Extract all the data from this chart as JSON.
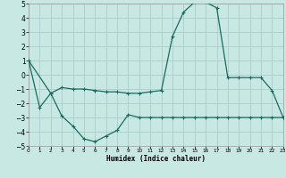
{
  "xlabel": "Humidex (Indice chaleur)",
  "bg_color": "#c8e8e4",
  "grid_color": "#b0d0cc",
  "line_color": "#1a6b5e",
  "xlim": [
    0,
    23
  ],
  "ylim": [
    -5,
    5
  ],
  "xticks": [
    0,
    1,
    2,
    3,
    4,
    5,
    6,
    7,
    8,
    9,
    10,
    11,
    12,
    13,
    14,
    15,
    16,
    17,
    18,
    19,
    20,
    21,
    22,
    23
  ],
  "yticks": [
    -5,
    -4,
    -3,
    -2,
    -1,
    0,
    1,
    2,
    3,
    4,
    5
  ],
  "line1_x": [
    0,
    1,
    2,
    3,
    4,
    5,
    6,
    7,
    8,
    9,
    10,
    11,
    12,
    13,
    14,
    15,
    16,
    17,
    18,
    19,
    20,
    21,
    22,
    23
  ],
  "line1_y": [
    1.0,
    -2.3,
    -1.3,
    -2.9,
    -3.6,
    -4.5,
    -4.7,
    -4.3,
    -3.9,
    -2.8,
    -3.0,
    -3.0,
    -3.0,
    -3.0,
    -3.0,
    -3.0,
    -3.0,
    -3.0,
    -3.0,
    -3.0,
    -3.0,
    -3.0,
    -3.0,
    -3.0
  ],
  "line2_x": [
    0,
    2,
    3,
    4,
    5,
    6,
    7,
    8,
    9,
    10,
    11,
    12,
    13,
    14,
    15,
    16,
    17,
    18,
    19,
    20,
    21,
    22,
    23
  ],
  "line2_y": [
    1.0,
    -1.3,
    -0.9,
    -1.0,
    -1.0,
    -1.1,
    -1.2,
    -1.2,
    -1.3,
    -1.3,
    -1.2,
    -1.1,
    2.7,
    4.4,
    5.1,
    5.1,
    4.7,
    -0.2,
    -0.2,
    -0.2,
    -0.2,
    -1.1,
    -3.0
  ]
}
